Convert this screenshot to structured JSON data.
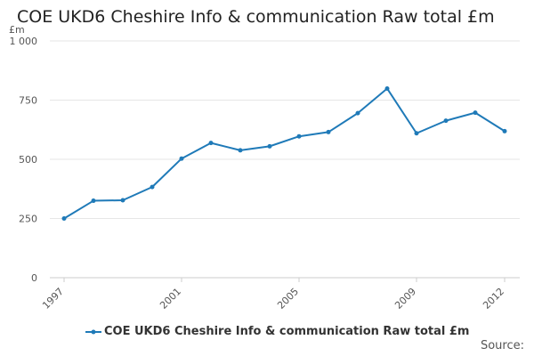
{
  "chart_data": {
    "type": "line",
    "title": "COE UKD6 Cheshire Info & communication Raw total £m",
    "ylabel": "£m",
    "x": [
      1997,
      1998,
      1999,
      2000,
      2001,
      2002,
      2003,
      2004,
      2005,
      2006,
      2007,
      2008,
      2009,
      2010,
      2011,
      2012
    ],
    "series": [
      {
        "name": "COE UKD6 Cheshire Info & communication Raw total £m",
        "values": [
          250,
          325,
          327,
          383,
          503,
          569,
          538,
          555,
          597,
          615,
          695,
          799,
          610,
          663,
          697,
          619
        ]
      }
    ],
    "xlim": [
      1997,
      2012
    ],
    "ylim": [
      0,
      1000
    ],
    "y_ticks": [
      0,
      250,
      500,
      750,
      1000
    ],
    "y_tick_labels": [
      "0",
      "250",
      "500",
      "750",
      "1 000"
    ],
    "x_ticks": [
      1997,
      2001,
      2005,
      2009,
      2012
    ],
    "x_tick_labels": [
      "1997",
      "2001",
      "2005",
      "2009",
      "2012"
    ],
    "grid": "horizontal",
    "legend_position": "bottom",
    "line_color": "#1f7ab8"
  },
  "source_label": "Source:"
}
